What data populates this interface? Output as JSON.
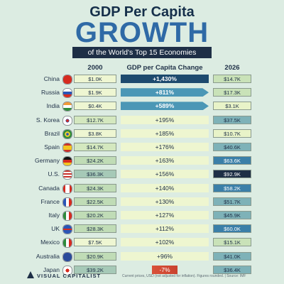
{
  "header": {
    "title_line1": "GDP Per Capita",
    "title_line2": "GROWTH",
    "subtitle": "of the World's Top 15 Economies"
  },
  "columns": {
    "c2000": "2000",
    "change": "GDP per Capita Change",
    "c2026": "2026"
  },
  "colors": {
    "dark_navy": "#1e2f46",
    "blue": "#2f6aa6",
    "teal_top": "#1f6f92",
    "teal_light": "#7ec6d4",
    "yellow_light": "#eaf4c6",
    "red": "#c9422e"
  },
  "chart_data": {
    "type": "table",
    "title": "GDP Per Capita GROWTH",
    "subtitle": "of the World's Top 15 Economies",
    "rows": [
      {
        "country": "China",
        "flag": "flag-china-icon",
        "v2000": "$1.0K",
        "change": "+1,430%",
        "v2026": "$14.7K",
        "change_value": 1430
      },
      {
        "country": "Russia",
        "flag": "flag-russia-icon",
        "v2000": "$1.9K",
        "change": "+811%",
        "v2026": "$17.3K",
        "change_value": 811
      },
      {
        "country": "India",
        "flag": "flag-india-icon",
        "v2000": "$0.4K",
        "change": "+589%",
        "v2026": "$3.1K",
        "change_value": 589
      },
      {
        "country": "S. Korea",
        "flag": "flag-korea-icon",
        "v2000": "$12.7K",
        "change": "+195%",
        "v2026": "$37.5K",
        "change_value": 195
      },
      {
        "country": "Brazil",
        "flag": "flag-brazil-icon",
        "v2000": "$3.8K",
        "change": "+185%",
        "v2026": "$10.7K",
        "change_value": 185
      },
      {
        "country": "Spain",
        "flag": "flag-spain-icon",
        "v2000": "$14.7K",
        "change": "+176%",
        "v2026": "$40.6K",
        "change_value": 176
      },
      {
        "country": "Germany",
        "flag": "flag-germany-icon",
        "v2000": "$24.2K",
        "change": "+163%",
        "v2026": "$63.6K",
        "change_value": 163
      },
      {
        "country": "U.S.",
        "flag": "flag-us-icon",
        "v2000": "$36.3K",
        "change": "+156%",
        "v2026": "$92.9K",
        "change_value": 156
      },
      {
        "country": "Canada",
        "flag": "flag-canada-icon",
        "v2000": "$24.3K",
        "change": "+140%",
        "v2026": "$58.2K",
        "change_value": 140
      },
      {
        "country": "France",
        "flag": "flag-france-icon",
        "v2000": "$22.5K",
        "change": "+130%",
        "v2026": "$51.7K",
        "change_value": 130
      },
      {
        "country": "Italy",
        "flag": "flag-italy-icon",
        "v2000": "$20.2K",
        "change": "+127%",
        "v2026": "$45.9K",
        "change_value": 127
      },
      {
        "country": "UK",
        "flag": "flag-uk-icon",
        "v2000": "$28.3K",
        "change": "+112%",
        "v2026": "$60.0K",
        "change_value": 112
      },
      {
        "country": "Mexico",
        "flag": "flag-mexico-icon",
        "v2000": "$7.5K",
        "change": "+102%",
        "v2026": "$15.1K",
        "change_value": 102
      },
      {
        "country": "Australia",
        "flag": "flag-australia-icon",
        "v2000": "$20.9K",
        "change": "+96%",
        "v2026": "$41.0K",
        "change_value": 96
      },
      {
        "country": "Japan",
        "flag": "flag-japan-icon",
        "v2000": "$39.2K",
        "change": "-7%",
        "v2026": "$36.4K",
        "change_value": -7
      }
    ]
  },
  "footer": {
    "brand": "VISUAL CAPITALIST",
    "note": "Current prices, USD (not adjusted for inflation). Figures rounded. | Source: IMF"
  }
}
